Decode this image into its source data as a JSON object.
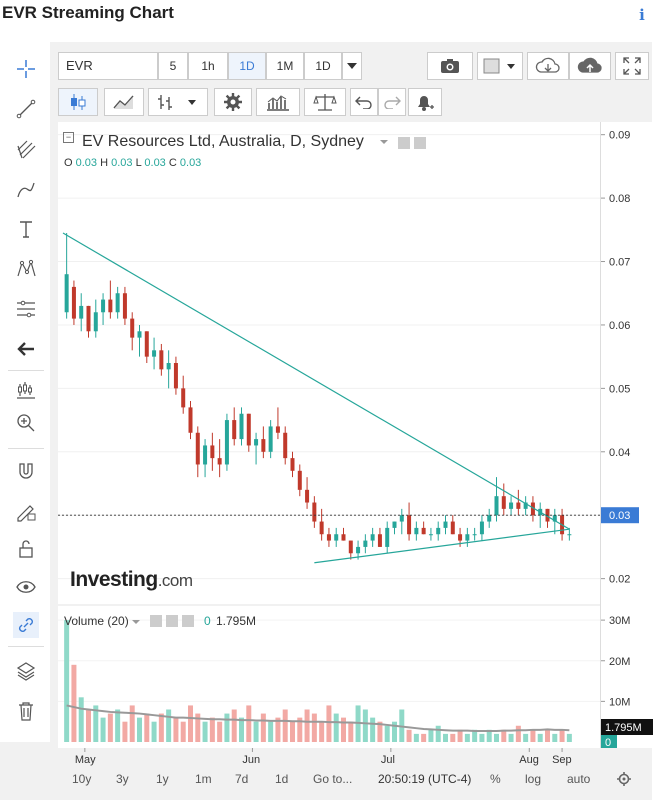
{
  "page": {
    "title": "EVR Streaming Chart",
    "info_icon": "info-icon"
  },
  "toolbar": {
    "symbol": "EVR",
    "timeframes": [
      "5",
      "1h",
      "1D",
      "1M",
      "1D"
    ],
    "selected_timeframe": "1D"
  },
  "legend": {
    "name": "EV Resources Ltd, Australia, D, Sydney",
    "ohlc": [
      {
        "k": "O",
        "v": "0.03"
      },
      {
        "k": "H",
        "v": "0.03"
      },
      {
        "k": "L",
        "v": "0.03"
      },
      {
        "k": "C",
        "v": "0.03"
      }
    ]
  },
  "volume_legend": {
    "label": "Volume (20)",
    "value_zero": "0",
    "value": "1.795M"
  },
  "watermark": {
    "text": "Investing",
    "suffix": ".com"
  },
  "price_axis": {
    "ticks": [
      "0.09",
      "0.08",
      "0.07",
      "0.06",
      "0.05",
      "0.04",
      "0.03",
      "0.02"
    ],
    "current_label": "0.03"
  },
  "volume_axis": {
    "ticks": [
      "30M",
      "20M",
      "10M"
    ],
    "current_label": "1.795M",
    "zero_label": "0"
  },
  "time_axis": {
    "labels": [
      "May",
      "Jun",
      "Jul",
      "Aug",
      "Sep"
    ]
  },
  "bottom_bar": {
    "ranges": [
      "10y",
      "3y",
      "1y",
      "1m",
      "7d",
      "1d",
      "Go to..."
    ],
    "clock": "20:50:19 (UTC-4)",
    "options": [
      "%",
      "log",
      "auto"
    ]
  },
  "colors": {
    "up": "#26a69a",
    "down": "#c0392b",
    "trendline": "#26a69a",
    "ma": "#999999"
  },
  "chart_data": {
    "type": "candlestick",
    "symbol": "EVR",
    "ylim": [
      0.016,
      0.092
    ],
    "y_ticks": [
      0.02,
      0.03,
      0.04,
      0.05,
      0.06,
      0.07,
      0.08,
      0.09
    ],
    "x_months": [
      "May",
      "Jun",
      "Jul",
      "Aug",
      "Sep"
    ],
    "candles": [
      [
        0.062,
        0.0745,
        0.061,
        0.068
      ],
      [
        0.066,
        0.067,
        0.06,
        0.061
      ],
      [
        0.061,
        0.065,
        0.059,
        0.063
      ],
      [
        0.063,
        0.063,
        0.058,
        0.059
      ],
      [
        0.059,
        0.064,
        0.058,
        0.062
      ],
      [
        0.062,
        0.065,
        0.06,
        0.064
      ],
      [
        0.064,
        0.067,
        0.061,
        0.062
      ],
      [
        0.062,
        0.066,
        0.061,
        0.065
      ],
      [
        0.065,
        0.066,
        0.06,
        0.061
      ],
      [
        0.061,
        0.062,
        0.056,
        0.058
      ],
      [
        0.058,
        0.06,
        0.055,
        0.059
      ],
      [
        0.059,
        0.059,
        0.054,
        0.055
      ],
      [
        0.055,
        0.058,
        0.053,
        0.056
      ],
      [
        0.056,
        0.057,
        0.052,
        0.053
      ],
      [
        0.053,
        0.056,
        0.05,
        0.054
      ],
      [
        0.054,
        0.055,
        0.049,
        0.05
      ],
      [
        0.05,
        0.052,
        0.046,
        0.047
      ],
      [
        0.047,
        0.048,
        0.042,
        0.043
      ],
      [
        0.043,
        0.044,
        0.036,
        0.038
      ],
      [
        0.038,
        0.042,
        0.036,
        0.041
      ],
      [
        0.041,
        0.043,
        0.037,
        0.039
      ],
      [
        0.039,
        0.042,
        0.036,
        0.038
      ],
      [
        0.038,
        0.046,
        0.037,
        0.045
      ],
      [
        0.045,
        0.047,
        0.041,
        0.042
      ],
      [
        0.042,
        0.047,
        0.041,
        0.046
      ],
      [
        0.046,
        0.046,
        0.04,
        0.041
      ],
      [
        0.041,
        0.043,
        0.038,
        0.042
      ],
      [
        0.042,
        0.044,
        0.039,
        0.04
      ],
      [
        0.04,
        0.045,
        0.039,
        0.044
      ],
      [
        0.044,
        0.047,
        0.042,
        0.043
      ],
      [
        0.043,
        0.044,
        0.038,
        0.039
      ],
      [
        0.039,
        0.04,
        0.036,
        0.037
      ],
      [
        0.037,
        0.038,
        0.033,
        0.034
      ],
      [
        0.034,
        0.036,
        0.031,
        0.032
      ],
      [
        0.032,
        0.033,
        0.028,
        0.029
      ],
      [
        0.029,
        0.031,
        0.026,
        0.027
      ],
      [
        0.027,
        0.028,
        0.025,
        0.026
      ],
      [
        0.026,
        0.028,
        0.025,
        0.027
      ],
      [
        0.027,
        0.028,
        0.026,
        0.026
      ],
      [
        0.026,
        0.026,
        0.023,
        0.024
      ],
      [
        0.024,
        0.026,
        0.023,
        0.025
      ],
      [
        0.025,
        0.027,
        0.024,
        0.026
      ],
      [
        0.026,
        0.028,
        0.025,
        0.027
      ],
      [
        0.027,
        0.028,
        0.025,
        0.025
      ],
      [
        0.025,
        0.029,
        0.024,
        0.028
      ],
      [
        0.028,
        0.029,
        0.027,
        0.029
      ],
      [
        0.029,
        0.031,
        0.027,
        0.03
      ],
      [
        0.03,
        0.032,
        0.026,
        0.027
      ],
      [
        0.027,
        0.029,
        0.026,
        0.028
      ],
      [
        0.028,
        0.029,
        0.027,
        0.027
      ],
      [
        0.027,
        0.028,
        0.026,
        0.027
      ],
      [
        0.027,
        0.029,
        0.026,
        0.028
      ],
      [
        0.028,
        0.03,
        0.027,
        0.029
      ],
      [
        0.029,
        0.03,
        0.027,
        0.027
      ],
      [
        0.027,
        0.028,
        0.025,
        0.026
      ],
      [
        0.026,
        0.028,
        0.025,
        0.027
      ],
      [
        0.027,
        0.028,
        0.026,
        0.027
      ],
      [
        0.027,
        0.03,
        0.026,
        0.029
      ],
      [
        0.029,
        0.031,
        0.028,
        0.03
      ],
      [
        0.03,
        0.036,
        0.029,
        0.033
      ],
      [
        0.033,
        0.035,
        0.03,
        0.031
      ],
      [
        0.031,
        0.033,
        0.03,
        0.032
      ],
      [
        0.032,
        0.034,
        0.03,
        0.031
      ],
      [
        0.031,
        0.033,
        0.03,
        0.032
      ],
      [
        0.032,
        0.033,
        0.029,
        0.03
      ],
      [
        0.03,
        0.032,
        0.028,
        0.031
      ],
      [
        0.031,
        0.031,
        0.028,
        0.029
      ],
      [
        0.029,
        0.031,
        0.027,
        0.03
      ],
      [
        0.03,
        0.031,
        0.026,
        0.027
      ],
      [
        0.027,
        0.028,
        0.026,
        0.027
      ]
    ],
    "trendlines": [
      {
        "from": [
          0,
          0.0745
        ],
        "to": [
          69.5,
          0.0278
        ]
      },
      {
        "from": [
          34.5,
          0.0225
        ],
        "to": [
          69.5,
          0.0278
        ]
      }
    ],
    "last_price": 0.03,
    "volume": {
      "ylim": [
        0,
        32
      ],
      "y_ticks": [
        10,
        20,
        30
      ],
      "unit": "M",
      "last": 1.795,
      "values": [
        30,
        19,
        11,
        8,
        9,
        6,
        7,
        8,
        5,
        9,
        6,
        7,
        5,
        7,
        8,
        6,
        5,
        9,
        7,
        5,
        6,
        5,
        7,
        8,
        6,
        9,
        5,
        7,
        5,
        6,
        8,
        5,
        6,
        8,
        7,
        5,
        9,
        7,
        6,
        5,
        9,
        8,
        6,
        5,
        4,
        5,
        8,
        3,
        2,
        2,
        3,
        4,
        2,
        2,
        3,
        2,
        3,
        2,
        3,
        2,
        3,
        2,
        4,
        2,
        3,
        2,
        3,
        2,
        3,
        2
      ],
      "ma_values": [
        9,
        8.6,
        8.2,
        8,
        7.8,
        7.6,
        7.4,
        7.3,
        7.2,
        7.1,
        7,
        6.8,
        6.6,
        6.4,
        6.2,
        6,
        6,
        5.9,
        5.8,
        5.7,
        5.6,
        5.6,
        5.5,
        5.5,
        5.4,
        5.4,
        5.3,
        5.3,
        5.2,
        5.2,
        5.2,
        5.1,
        5.1,
        5,
        5,
        5,
        4.9,
        4.9,
        4.8,
        4.8,
        4.7,
        4.6,
        4.5,
        4.4,
        4.2,
        4,
        3.8,
        3.6,
        3.4,
        3.2,
        3.1,
        3,
        2.9,
        2.8,
        2.8,
        2.8,
        2.7,
        2.7,
        2.7,
        2.7,
        2.8,
        2.8,
        2.9,
        2.9,
        3,
        3,
        3.1,
        3,
        3,
        2.9
      ]
    }
  }
}
